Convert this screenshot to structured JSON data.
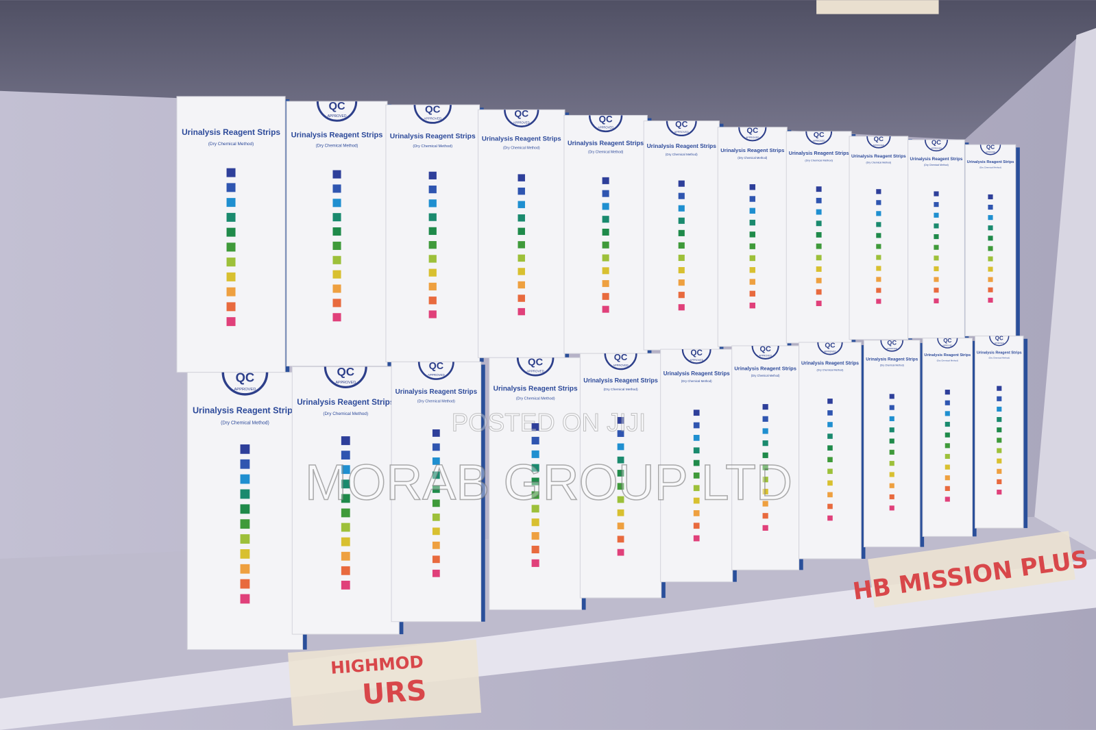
{
  "box_label": {
    "seal": "QC",
    "seal_caption": "APPROVED",
    "title": "Urinalysis Reagent Strips",
    "subtitle": "(Dry Chemical Method)"
  },
  "watermark": {
    "line1": "POSTED ON JIJI",
    "line2": "MORAB GROUP LTD"
  },
  "shelf_labels": {
    "lower_left": [
      "HIGHMOD",
      "URS"
    ],
    "right": "HB MISSION PLUS"
  }
}
